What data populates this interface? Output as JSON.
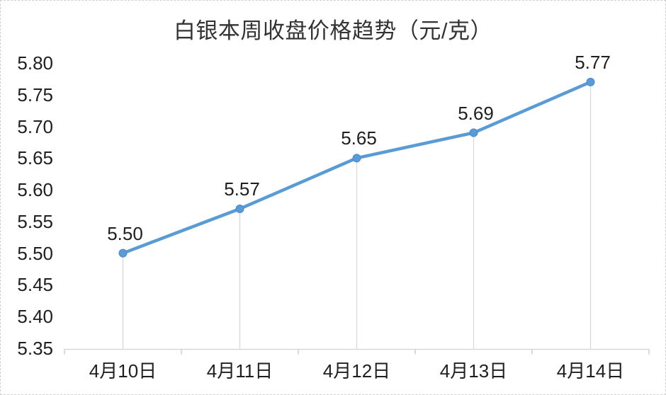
{
  "chart_data": {
    "type": "line",
    "title": "白银本周收盘价格趋势（元/克）",
    "categories": [
      "4月10日",
      "4月11日",
      "4月12日",
      "4月13日",
      "4月14日"
    ],
    "values": [
      5.5,
      5.57,
      5.65,
      5.69,
      5.77
    ],
    "data_labels": [
      "5.50",
      "5.57",
      "5.65",
      "5.69",
      "5.77"
    ],
    "ylim": [
      5.35,
      5.8
    ],
    "ytick_step": 0.05,
    "ytick_labels": [
      "5.80",
      "5.75",
      "5.70",
      "5.65",
      "5.60",
      "5.55",
      "5.50",
      "5.45",
      "5.40",
      "5.35"
    ],
    "xlabel": "",
    "ylabel": "",
    "legend": "none",
    "grid": "off",
    "drop_lines": true,
    "colors": {
      "line": "#5B9BD5",
      "marker_fill": "#5B9BD5",
      "marker_edge": "#4A89C8",
      "axis_line": "#D9D9D9",
      "drop_line": "#D9D9D9",
      "tick_mark": "#C6C6C6",
      "label_text": "#1f1f1f",
      "title_text": "#333333"
    }
  }
}
